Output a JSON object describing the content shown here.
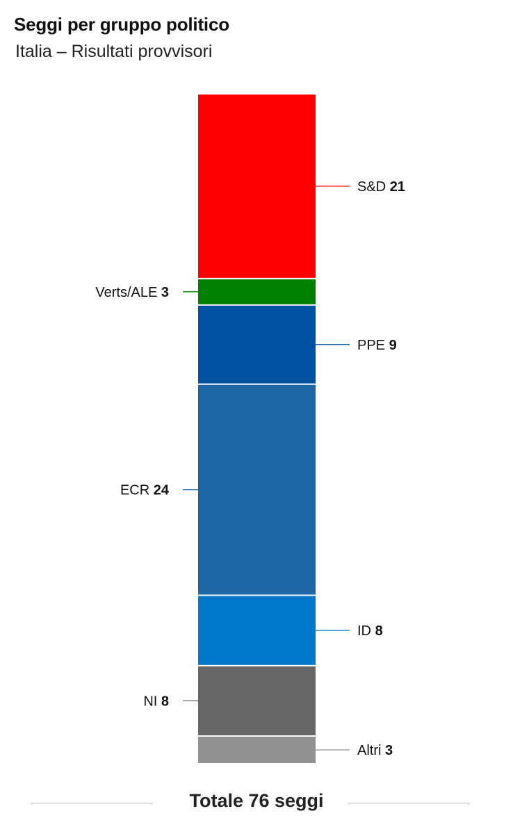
{
  "header": {
    "title": "Seggi per gruppo politico",
    "subtitle": "Italia – Risultati provvisori"
  },
  "footer": {
    "total_label": "Totale 76 seggi"
  },
  "chart_data": {
    "type": "bar",
    "orientation": "stacked-vertical",
    "total": 76,
    "segments": [
      {
        "name": "S&D",
        "value": 21,
        "color": "#ff0000",
        "label_side": "right"
      },
      {
        "name": "Verts/ALE",
        "value": 3,
        "color": "#008000",
        "label_side": "left"
      },
      {
        "name": "PPE",
        "value": 9,
        "color": "#0152a0",
        "label_side": "right"
      },
      {
        "name": "ECR",
        "value": 24,
        "color": "#1c66a6",
        "label_side": "left"
      },
      {
        "name": "ID",
        "value": 8,
        "color": "#0077c8",
        "label_side": "right"
      },
      {
        "name": "NI",
        "value": 8,
        "color": "#666666",
        "label_side": "left"
      },
      {
        "name": "Altri",
        "value": 3,
        "color": "#919191",
        "label_side": "right"
      }
    ]
  }
}
